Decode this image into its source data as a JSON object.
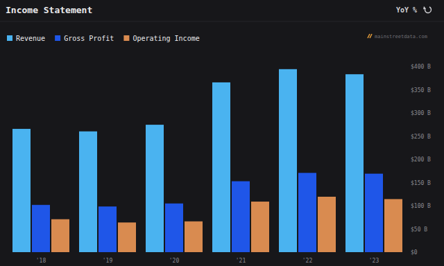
{
  "chart_data": {
    "type": "bar",
    "title": "Income Statement",
    "annotations": [
      "YoY %",
      "mainstreetdata.com"
    ],
    "categories": [
      "'18",
      "'19",
      "'20",
      "'21",
      "'22",
      "'23"
    ],
    "series": [
      {
        "name": "Revenue",
        "color": "#4ab3f0",
        "values": [
          265.6,
          260.2,
          274.5,
          365.8,
          394.3,
          383.3
        ]
      },
      {
        "name": "Gross Profit",
        "color": "#1f56e8",
        "values": [
          101.8,
          98.4,
          104.9,
          152.8,
          170.8,
          169.1
        ]
      },
      {
        "name": "Operating Income",
        "color": "#d98b50",
        "values": [
          70.9,
          63.9,
          66.3,
          108.9,
          119.4,
          114.3
        ]
      }
    ],
    "ylim": [
      0,
      400
    ],
    "yticks": [
      {
        "value": 0,
        "label": "$0"
      },
      {
        "value": 50,
        "label": "$50 B"
      },
      {
        "value": 100,
        "label": "$100 B"
      },
      {
        "value": 150,
        "label": "$150 B"
      },
      {
        "value": 200,
        "label": "$200 B"
      },
      {
        "value": 250,
        "label": "$250 B"
      },
      {
        "value": 300,
        "label": "$300 B"
      },
      {
        "value": 350,
        "label": "$350 B"
      },
      {
        "value": 400,
        "label": "$400 B"
      }
    ],
    "grid": false,
    "legend": "top-left"
  }
}
